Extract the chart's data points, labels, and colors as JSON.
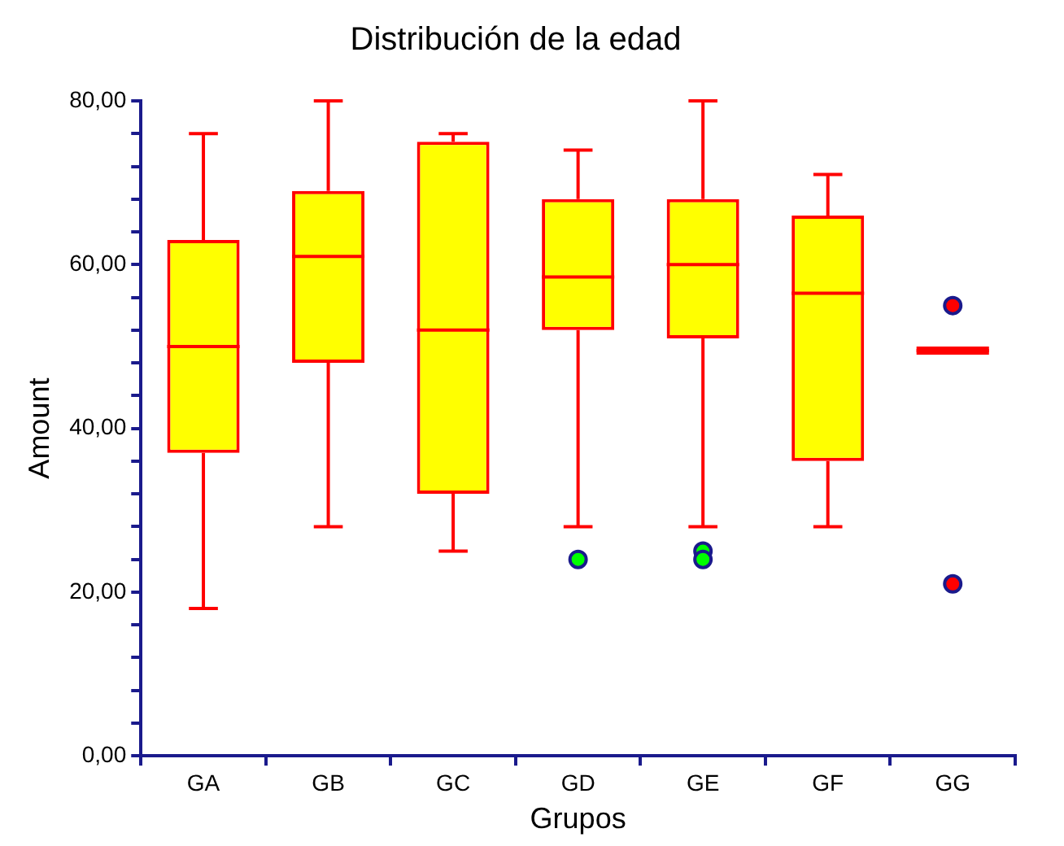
{
  "chart_data": {
    "type": "box",
    "title": "Distribución de la edad",
    "xlabel": "Grupos",
    "ylabel": "Amount",
    "categories": [
      "GA",
      "GB",
      "GC",
      "GD",
      "GE",
      "GF",
      "GG"
    ],
    "series": [
      {
        "color": "#ff0000",
        "boxes": [
          {
            "low": 18,
            "q1": 37,
            "median": 50,
            "q3": 63,
            "high": 76
          },
          {
            "low": 28,
            "q1": 48,
            "median": 61,
            "q3": 69,
            "high": 80
          },
          {
            "low": 25,
            "q1": 32,
            "median": 52,
            "q3": 75,
            "high": 76
          },
          {
            "low": 28,
            "q1": 52,
            "median": 58.5,
            "q3": 68,
            "high": 74
          },
          {
            "low": 28,
            "q1": 51,
            "median": 60,
            "q3": 68,
            "high": 80
          },
          {
            "low": 28,
            "q1": 36,
            "median": 56.5,
            "q3": 66,
            "high": 71
          },
          {
            "low": 49.5,
            "q1": 49.5,
            "median": 49.5,
            "q3": 49.5,
            "high": 49.5
          }
        ]
      },
      {
        "type": "scatter",
        "x": [
          "GD",
          "GE",
          "GE",
          "GG",
          "GG"
        ],
        "values": [
          24,
          25,
          24,
          55,
          21
        ],
        "colors": [
          "#00ff00",
          "#00ff00",
          "#00ff00",
          "#ff0000",
          "#ff0000"
        ]
      }
    ],
    "ylim": [
      0,
      80
    ],
    "yticks": [
      {
        "value": 0,
        "label": "0,00"
      },
      {
        "value": 4,
        "label": null
      },
      {
        "value": 8,
        "label": null
      },
      {
        "value": 12,
        "label": null
      },
      {
        "value": 16,
        "label": null
      },
      {
        "value": 20,
        "label": "20,00"
      },
      {
        "value": 24,
        "label": null
      },
      {
        "value": 28,
        "label": null
      },
      {
        "value": 32,
        "label": null
      },
      {
        "value": 36,
        "label": null
      },
      {
        "value": 40,
        "label": "40,00"
      },
      {
        "value": 44,
        "label": null
      },
      {
        "value": 48,
        "label": null
      },
      {
        "value": 52,
        "label": null
      },
      {
        "value": 56,
        "label": null
      },
      {
        "value": 60,
        "label": "60,00"
      },
      {
        "value": 64,
        "label": null
      },
      {
        "value": 68,
        "label": null
      },
      {
        "value": 72,
        "label": null
      },
      {
        "value": 76,
        "label": null
      },
      {
        "value": 80,
        "label": "80,00"
      }
    ],
    "grid": false,
    "legend": false,
    "marker": "circle"
  }
}
